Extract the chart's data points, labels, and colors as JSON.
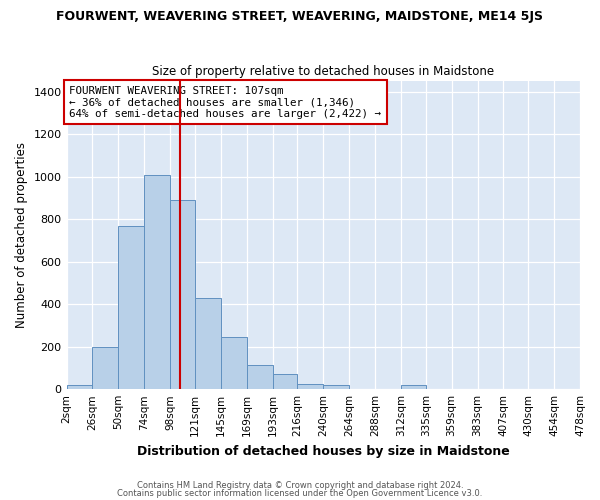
{
  "title": "FOURWENT, WEAVERING STREET, WEAVERING, MAIDSTONE, ME14 5JS",
  "subtitle": "Size of property relative to detached houses in Maidstone",
  "xlabel": "Distribution of detached houses by size in Maidstone",
  "ylabel": "Number of detached properties",
  "bin_labels": [
    "2sqm",
    "26sqm",
    "50sqm",
    "74sqm",
    "98sqm",
    "121sqm",
    "145sqm",
    "169sqm",
    "193sqm",
    "216sqm",
    "240sqm",
    "264sqm",
    "288sqm",
    "312sqm",
    "335sqm",
    "359sqm",
    "383sqm",
    "407sqm",
    "430sqm",
    "454sqm",
    "478sqm"
  ],
  "bin_edges": [
    2,
    26,
    50,
    74,
    98,
    121,
    145,
    169,
    193,
    216,
    240,
    264,
    288,
    312,
    335,
    359,
    383,
    407,
    430,
    454,
    478
  ],
  "bar_heights": [
    20,
    200,
    770,
    1010,
    890,
    430,
    245,
    115,
    70,
    25,
    20,
    0,
    0,
    20,
    0,
    0,
    0,
    0,
    0,
    0
  ],
  "bar_color": "#b8d0e8",
  "bar_edge_color": "#6090c0",
  "vline_x": 107,
  "ylim": [
    0,
    1450
  ],
  "yticks": [
    0,
    200,
    400,
    600,
    800,
    1000,
    1200,
    1400
  ],
  "annotation_title": "FOURWENT WEAVERING STREET: 107sqm",
  "annotation_line2": "← 36% of detached houses are smaller (1,346)",
  "annotation_line3": "64% of semi-detached houses are larger (2,422) →",
  "annotation_box_color": "#ffffff",
  "annotation_box_edge": "#cc0000",
  "bg_color": "#dde8f5",
  "fig_bg_color": "#ffffff",
  "footer1": "Contains HM Land Registry data © Crown copyright and database right 2024.",
  "footer2": "Contains public sector information licensed under the Open Government Licence v3.0."
}
